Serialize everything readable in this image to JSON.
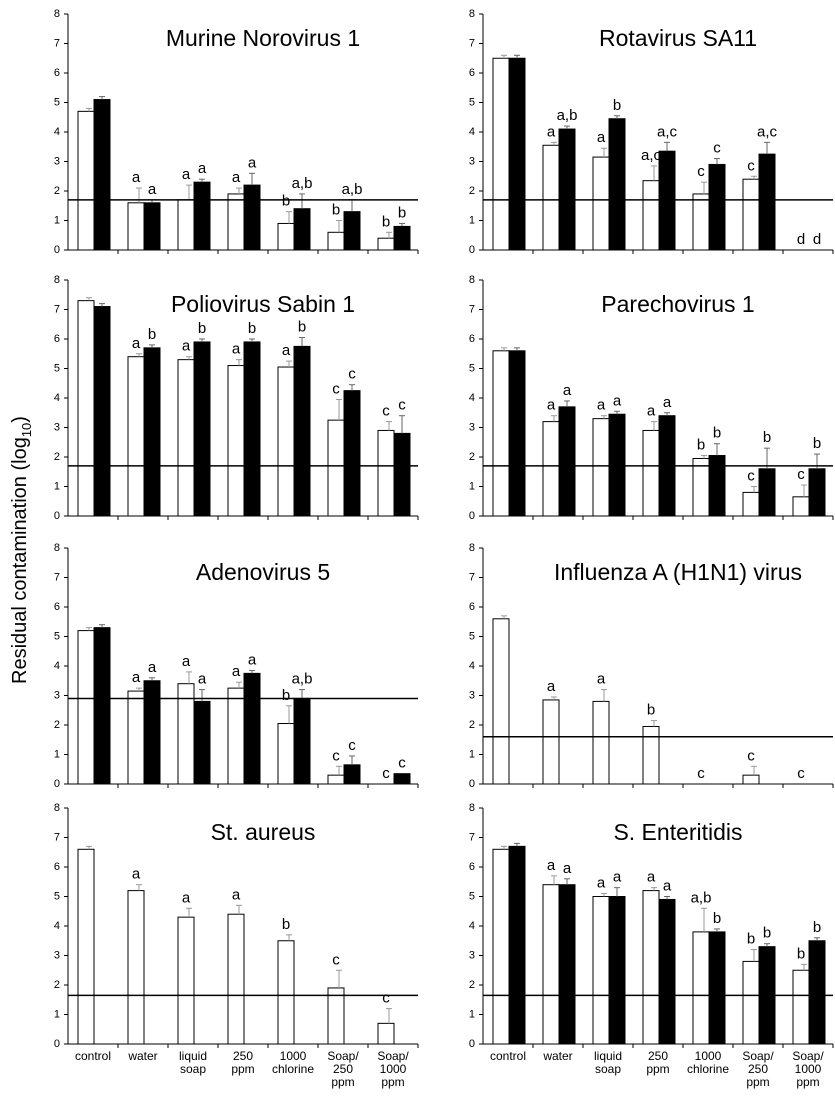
{
  "ylabel": "Residual contamination (log",
  "ylabel_sub": "10",
  "ylabel_end": ")",
  "chart_data": [
    {
      "type": "bar",
      "title": "Murine Norovirus 1",
      "ylim": [
        0,
        8
      ],
      "yticks": [
        0,
        1,
        2,
        3,
        4,
        5,
        6,
        7,
        8
      ],
      "threshold": 1.7,
      "categories": [
        null,
        null,
        null,
        null,
        null,
        null,
        null
      ],
      "series": [
        {
          "color": "#ffffff",
          "values": [
            4.7,
            1.6,
            1.7,
            1.9,
            0.9,
            0.6,
            0.4
          ],
          "errors": [
            0.1,
            0.5,
            0.5,
            0.2,
            0.4,
            0.4,
            0.2
          ],
          "annotations": [
            null,
            "a",
            "a",
            "a",
            "b",
            "b",
            "b"
          ]
        },
        {
          "color": "#000000",
          "values": [
            5.1,
            1.6,
            2.3,
            2.2,
            1.4,
            1.3,
            0.8
          ],
          "errors": [
            0.1,
            0.1,
            0.1,
            0.4,
            0.5,
            0.4,
            0.1
          ],
          "annotations": [
            null,
            "a",
            "a",
            "a",
            "a,b",
            "a,b",
            "b"
          ]
        }
      ]
    },
    {
      "type": "bar",
      "title": "Rotavirus SA11",
      "ylim": [
        0,
        8
      ],
      "yticks": [
        0,
        1,
        2,
        3,
        4,
        5,
        6,
        7,
        8
      ],
      "threshold": 1.7,
      "categories": [
        null,
        null,
        null,
        null,
        null,
        null,
        null
      ],
      "series": [
        {
          "color": "#ffffff",
          "values": [
            6.5,
            3.55,
            3.15,
            2.35,
            1.9,
            2.4,
            0
          ],
          "errors": [
            0.1,
            0.1,
            0.3,
            0.5,
            0.4,
            0.1,
            0
          ],
          "annotations": [
            null,
            "a",
            "a",
            "a,c",
            "c",
            "c",
            "d"
          ]
        },
        {
          "color": "#000000",
          "values": [
            6.5,
            4.1,
            4.45,
            3.35,
            2.9,
            3.25,
            0
          ],
          "errors": [
            0.1,
            0.1,
            0.1,
            0.3,
            0.2,
            0.4,
            0
          ],
          "annotations": [
            null,
            "a,b",
            "b",
            "a,c",
            "c",
            "a,c",
            "d"
          ]
        }
      ]
    },
    {
      "type": "bar",
      "title": "Poliovirus Sabin 1",
      "ylim": [
        0,
        8
      ],
      "yticks": [
        0,
        1,
        2,
        3,
        4,
        5,
        6,
        7,
        8
      ],
      "threshold": 1.7,
      "categories": [
        null,
        null,
        null,
        null,
        null,
        null,
        null
      ],
      "series": [
        {
          "color": "#ffffff",
          "values": [
            7.3,
            5.4,
            5.3,
            5.1,
            5.05,
            3.25,
            2.9
          ],
          "errors": [
            0.1,
            0.1,
            0.1,
            0.2,
            0.2,
            0.7,
            0.3
          ],
          "annotations": [
            null,
            "a",
            "a",
            "a",
            "a",
            "c",
            "c"
          ]
        },
        {
          "color": "#000000",
          "values": [
            7.1,
            5.7,
            5.9,
            5.9,
            5.75,
            4.25,
            2.8
          ],
          "errors": [
            0.1,
            0.1,
            0.1,
            0.1,
            0.3,
            0.2,
            0.6
          ],
          "annotations": [
            null,
            "b",
            "b",
            "b",
            "b",
            "c",
            "c"
          ]
        }
      ]
    },
    {
      "type": "bar",
      "title": "Parechovirus 1",
      "ylim": [
        0,
        8
      ],
      "yticks": [
        0,
        1,
        2,
        3,
        4,
        5,
        6,
        7,
        8
      ],
      "threshold": 1.7,
      "categories": [
        null,
        null,
        null,
        null,
        null,
        null,
        null
      ],
      "series": [
        {
          "color": "#ffffff",
          "values": [
            5.6,
            3.2,
            3.3,
            2.9,
            1.95,
            0.8,
            0.65
          ],
          "errors": [
            0.1,
            0.2,
            0.1,
            0.3,
            0.1,
            0.2,
            0.4
          ],
          "annotations": [
            null,
            "a",
            "a",
            "a",
            "b",
            "c",
            "c"
          ]
        },
        {
          "color": "#000000",
          "values": [
            5.6,
            3.7,
            3.45,
            3.4,
            2.05,
            1.6,
            1.6
          ],
          "errors": [
            0.1,
            0.2,
            0.1,
            0.1,
            0.4,
            0.7,
            0.5
          ],
          "annotations": [
            null,
            "a",
            "a",
            "a",
            "b",
            "b",
            "b"
          ]
        }
      ]
    },
    {
      "type": "bar",
      "title": "Adenovirus 5",
      "ylim": [
        0,
        8
      ],
      "yticks": [
        0,
        1,
        2,
        3,
        4,
        5,
        6,
        7,
        8
      ],
      "threshold": 2.9,
      "categories": [
        null,
        null,
        null,
        null,
        null,
        null,
        null
      ],
      "series": [
        {
          "color": "#ffffff",
          "values": [
            5.2,
            3.15,
            3.4,
            3.25,
            2.05,
            0.3,
            0
          ],
          "errors": [
            0.1,
            0.1,
            0.4,
            0.2,
            0.6,
            0.3,
            0
          ],
          "annotations": [
            null,
            "a",
            "a",
            "a",
            "b",
            "c",
            "c"
          ]
        },
        {
          "color": "#000000",
          "values": [
            5.3,
            3.5,
            2.8,
            3.75,
            2.9,
            0.65,
            0.35
          ],
          "errors": [
            0.1,
            0.1,
            0.4,
            0.1,
            0.3,
            0.3,
            0
          ],
          "annotations": [
            null,
            "a",
            "a",
            "a",
            "a,b",
            "c",
            "c"
          ]
        }
      ]
    },
    {
      "type": "bar",
      "title": "Influenza A (H1N1) virus",
      "ylim": [
        0,
        8
      ],
      "yticks": [
        0,
        1,
        2,
        3,
        4,
        5,
        6,
        7,
        8
      ],
      "threshold": 1.6,
      "categories": [
        null,
        null,
        null,
        null,
        null,
        null,
        null
      ],
      "series": [
        {
          "color": "#ffffff",
          "values": [
            5.6,
            2.85,
            2.8,
            1.95,
            0,
            0.3,
            0
          ],
          "errors": [
            0.1,
            0.1,
            0.4,
            0.2,
            0,
            0.3,
            0
          ],
          "annotations": [
            null,
            "a",
            "a",
            "b",
            "c",
            "c",
            "c"
          ]
        }
      ]
    },
    {
      "type": "bar",
      "title": "St. aureus",
      "ylim": [
        0,
        8
      ],
      "yticks": [
        0,
        1,
        2,
        3,
        4,
        5,
        6,
        7,
        8
      ],
      "threshold": 1.65,
      "categories": [
        [
          "control"
        ],
        [
          "water"
        ],
        [
          "liquid",
          "soap"
        ],
        [
          "250",
          "ppm"
        ],
        [
          "1000"
        ],
        [
          "Soap/",
          "250",
          "ppm"
        ],
        [
          "Soap/",
          "1000",
          "ppm"
        ]
      ],
      "category_note": "chlorine",
      "series": [
        {
          "color": "#ffffff",
          "values": [
            6.6,
            5.2,
            4.3,
            4.4,
            3.5,
            1.9,
            0.7
          ],
          "errors": [
            0.1,
            0.2,
            0.3,
            0.3,
            0.2,
            0.6,
            0.5
          ],
          "annotations": [
            null,
            "a",
            "a",
            "a",
            "b",
            "c",
            "c"
          ]
        }
      ]
    },
    {
      "type": "bar",
      "title": "S. Enteritidis",
      "ylim": [
        0,
        8
      ],
      "yticks": [
        0,
        1,
        2,
        3,
        4,
        5,
        6,
        7,
        8
      ],
      "threshold": 1.65,
      "categories": [
        [
          "control"
        ],
        [
          "water"
        ],
        [
          "liquid",
          "soap"
        ],
        [
          "250",
          "ppm"
        ],
        [
          "1000"
        ],
        [
          "Soap/",
          "250",
          "ppm"
        ],
        [
          "Soap/",
          "1000",
          "ppm"
        ]
      ],
      "category_note": "chlorine",
      "series": [
        {
          "color": "#ffffff",
          "values": [
            6.6,
            5.4,
            5.0,
            5.2,
            3.8,
            2.8,
            2.5
          ],
          "errors": [
            0.1,
            0.3,
            0.1,
            0.1,
            0.8,
            0.4,
            0.2
          ],
          "annotations": [
            null,
            "a",
            "a",
            "a",
            "a,b",
            "b",
            "b"
          ]
        },
        {
          "color": "#000000",
          "values": [
            6.7,
            5.4,
            5.0,
            4.9,
            3.8,
            3.3,
            3.5
          ],
          "errors": [
            0.1,
            0.2,
            0.3,
            0.1,
            0.1,
            0.1,
            0.1
          ],
          "annotations": [
            null,
            "a",
            "a",
            "a",
            "b",
            "b",
            "b"
          ]
        }
      ]
    }
  ]
}
